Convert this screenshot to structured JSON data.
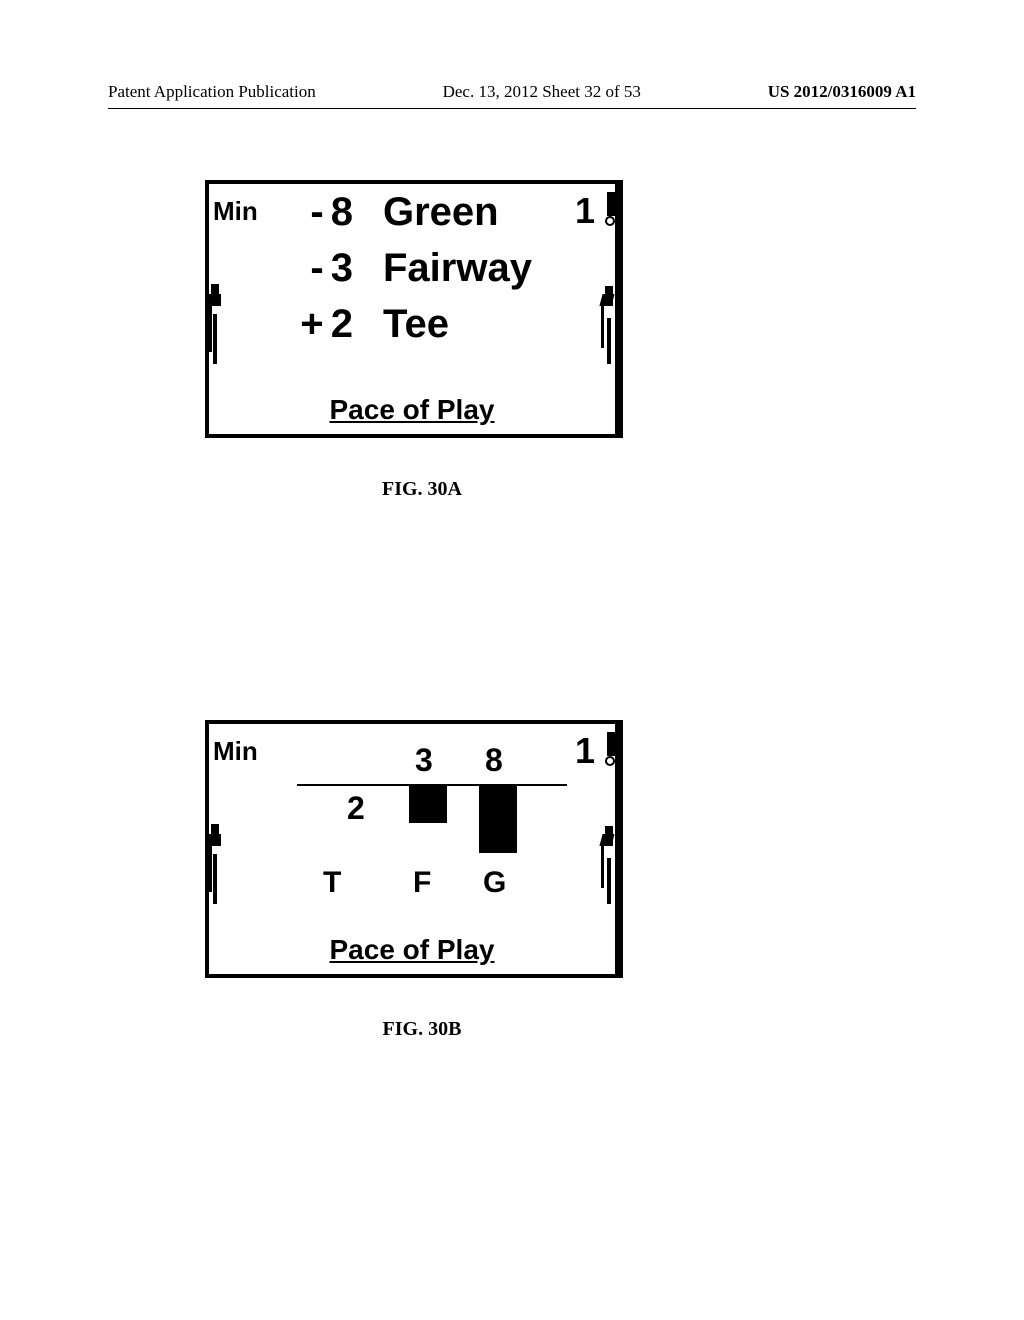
{
  "header": {
    "left": "Patent Application Publication",
    "mid": "Dec. 13, 2012  Sheet 32 of 53",
    "right": "US 2012/0316009 A1"
  },
  "figA": {
    "caption": "FIG.  30A",
    "minLabel": "Min",
    "holeNumber": "1",
    "rows": [
      {
        "value": "- 8",
        "label": "Green"
      },
      {
        "value": "- 3",
        "label": "Fairway"
      },
      {
        "value": "+ 2",
        "label": "Tee"
      }
    ],
    "footer": "Pace of Play"
  },
  "figB": {
    "caption": "FIG. 30B",
    "minLabel": "Min",
    "holeNumber": "1",
    "footer": "Pace of Play",
    "values": {
      "T": "2",
      "F": "3",
      "G": "8"
    },
    "letters": {
      "T": "T",
      "F": "F",
      "G": "G"
    },
    "colors": {
      "bar": "#000000",
      "axis": "#000000",
      "bg": "#ffffff"
    }
  }
}
